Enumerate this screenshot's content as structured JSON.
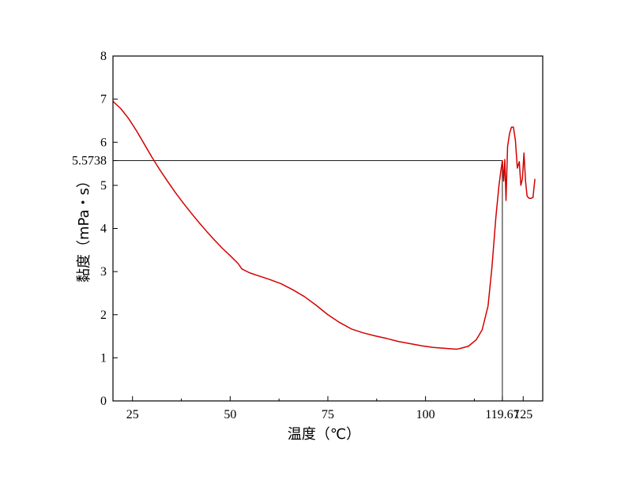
{
  "chart_data": {
    "type": "line",
    "title": "",
    "xlabel": "温度（℃）",
    "ylabel": "黏度（mPa・s）",
    "xlim": [
      20,
      130
    ],
    "ylim": [
      0,
      8
    ],
    "x_ticks": [
      {
        "value": 25,
        "label": "25"
      },
      {
        "value": 50,
        "label": "50"
      },
      {
        "value": 75,
        "label": "75"
      },
      {
        "value": 100,
        "label": "100"
      },
      {
        "value": 119.67,
        "label": "119.67"
      },
      {
        "value": 125,
        "label": "125"
      }
    ],
    "y_ticks": [
      {
        "value": 0,
        "label": "0"
      },
      {
        "value": 1,
        "label": "1"
      },
      {
        "value": 2,
        "label": "2"
      },
      {
        "value": 3,
        "label": "3"
      },
      {
        "value": 4,
        "label": "4"
      },
      {
        "value": 5,
        "label": "5"
      },
      {
        "value": 5.5738,
        "label": "5.5738"
      },
      {
        "value": 6,
        "label": "6"
      },
      {
        "value": 7,
        "label": "7"
      },
      {
        "value": 8,
        "label": "8"
      }
    ],
    "reference_lines": [
      {
        "orientation": "horizontal",
        "value": 5.5738,
        "x_from": 20,
        "x_to": 119.67
      },
      {
        "orientation": "vertical",
        "value": 119.67,
        "y_from": 0,
        "y_to": 5.5738
      }
    ],
    "series": [
      {
        "color": "#d40000",
        "x": [
          20,
          22,
          24,
          26,
          28,
          30,
          32,
          34,
          36,
          38,
          40,
          42,
          44,
          46,
          48,
          50,
          52,
          53,
          55,
          57,
          60,
          63,
          66,
          69,
          72,
          75,
          78,
          81,
          84,
          87,
          90,
          93,
          96,
          99,
          102,
          105,
          108,
          109,
          111,
          113,
          114.5,
          116,
          117,
          118,
          118.8,
          119.3,
          119.67,
          120,
          120.3,
          120.6,
          121,
          121.5,
          122,
          122.5,
          123,
          123.5,
          124,
          124.4,
          124.8,
          125.2,
          125.6,
          126,
          126.5,
          127,
          127.5,
          128
        ],
        "y": [
          6.95,
          6.78,
          6.55,
          6.27,
          5.96,
          5.65,
          5.36,
          5.09,
          4.83,
          4.59,
          4.36,
          4.14,
          3.93,
          3.73,
          3.54,
          3.37,
          3.19,
          3.06,
          2.97,
          2.91,
          2.82,
          2.72,
          2.58,
          2.42,
          2.22,
          2.0,
          1.82,
          1.67,
          1.58,
          1.51,
          1.45,
          1.38,
          1.33,
          1.28,
          1.24,
          1.22,
          1.2,
          1.22,
          1.27,
          1.42,
          1.65,
          2.2,
          3.1,
          4.25,
          5.0,
          5.35,
          5.5738,
          5.1,
          5.6,
          4.65,
          5.9,
          6.2,
          6.35,
          6.35,
          6.05,
          5.4,
          5.55,
          5.0,
          5.15,
          5.75,
          5.1,
          4.75,
          4.7,
          4.7,
          4.72,
          5.15
        ]
      }
    ]
  }
}
